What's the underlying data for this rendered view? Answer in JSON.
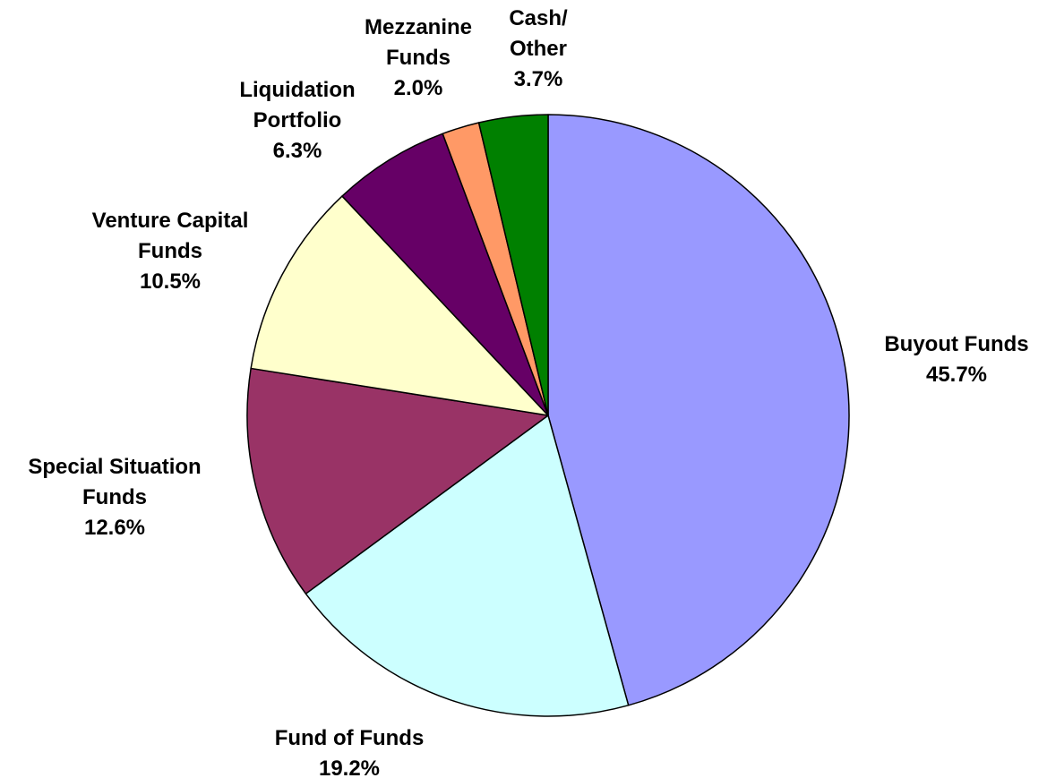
{
  "chart_data": {
    "type": "pie",
    "categories": [
      "Buyout Funds",
      "Fund of Funds",
      "Special Situation Funds",
      "Venture Capital Funds",
      "Liquidation Portfolio",
      "Mezzanine Funds",
      "Cash/ Other"
    ],
    "values": [
      45.7,
      19.2,
      12.6,
      10.5,
      6.3,
      2.0,
      3.7
    ],
    "value_labels": [
      "45.7%",
      "19.2%",
      "12.6%",
      "10.5%",
      "6.3%",
      "2.0%",
      "3.7%"
    ],
    "colors": [
      "#9999ff",
      "#ccffff",
      "#993366",
      "#ffffcc",
      "#660066",
      "#ff9966",
      "#008000"
    ]
  }
}
